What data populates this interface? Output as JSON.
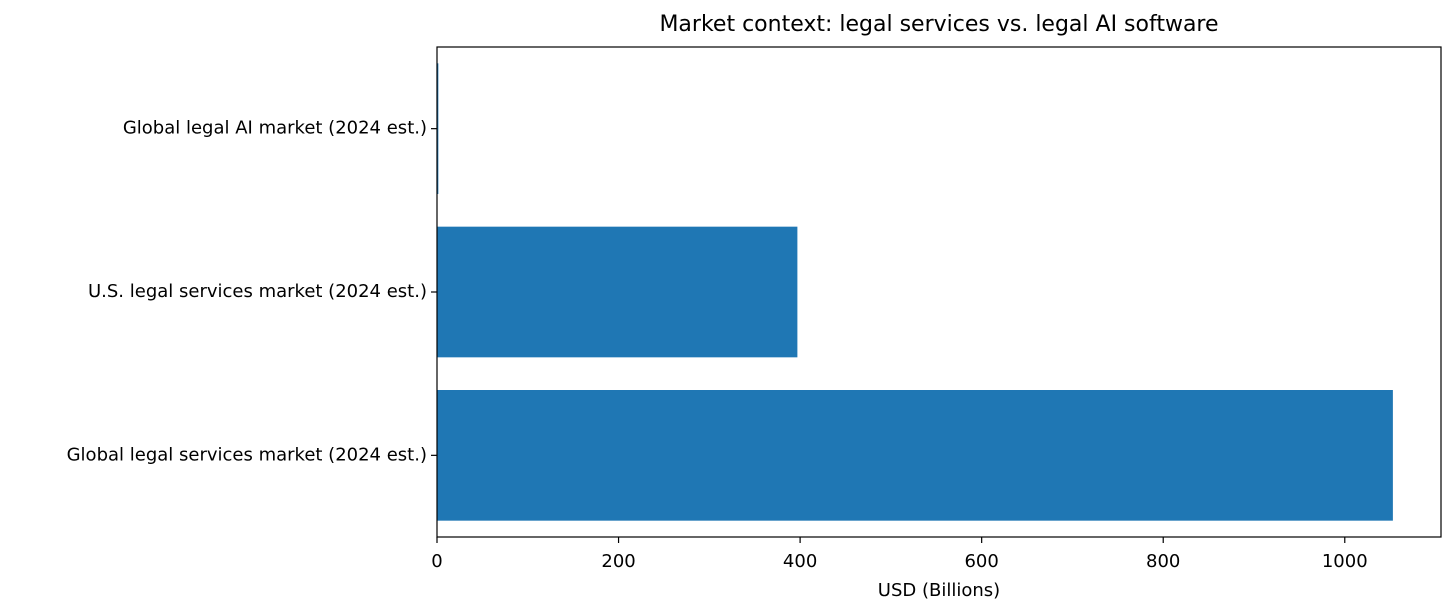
{
  "chart_data": {
    "type": "bar",
    "orientation": "horizontal",
    "title": "Market context: legal services vs. legal AI software",
    "xlabel": "USD (Billions)",
    "categories": [
      "Global legal AI market (2024 est.)",
      "U.S. legal services market (2024 est.)",
      "Global legal services market (2024 est.)"
    ],
    "values": [
      1.5,
      397,
      1053
    ],
    "color": "#1f77b4",
    "xlim": [
      0,
      1106
    ],
    "xticks": [
      0,
      200,
      400,
      600,
      800,
      1000
    ],
    "grid": false
  }
}
